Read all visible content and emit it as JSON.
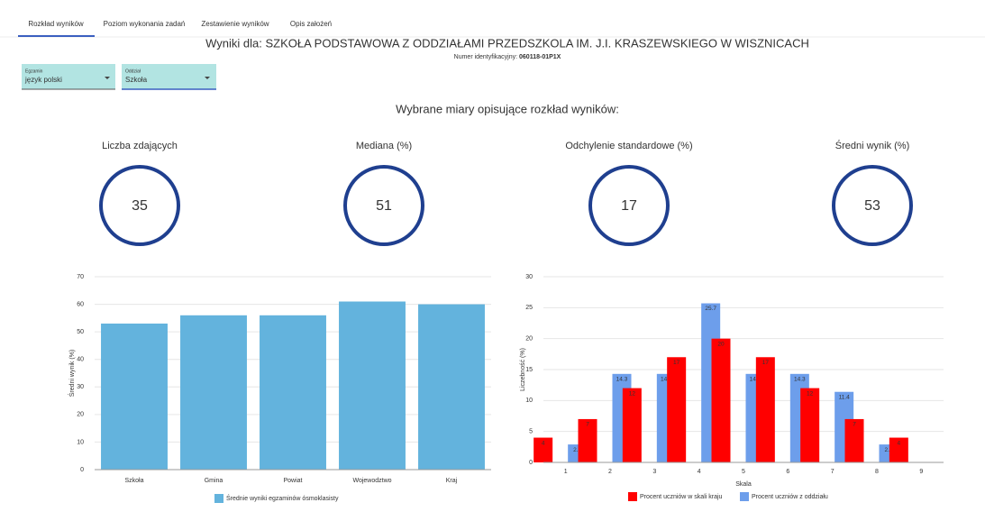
{
  "tabs": [
    "Rozkład wyników",
    "Poziom wykonania zadań",
    "Zestawienie wyników",
    "Opis założeń"
  ],
  "header": {
    "title": "Wyniki dla: SZKOŁA PODSTAWOWA Z ODDZIAŁAMI PRZEDSZKOLA IM. J.I. KRASZEWSKIEGO W WISZNICACH",
    "id_label": "Numer identyfikacyjny:",
    "id_value": "060118-01P1X"
  },
  "filters": [
    {
      "label": "Egzamin",
      "value": "język polski"
    },
    {
      "label": "Oddział",
      "value": "Szkoła"
    }
  ],
  "section_title": "Wybrane miary opisujące rozkład wyników:",
  "stats": [
    {
      "label": "Liczba zdających",
      "value": 35
    },
    {
      "label": "Mediana (%)",
      "value": 51
    },
    {
      "label": "Odchylenie standardowe (%)",
      "value": 17
    },
    {
      "label": "Średni wynik (%)",
      "value": 53
    }
  ],
  "chart_data": [
    {
      "type": "bar",
      "categories": [
        "Szkoła",
        "Gmina",
        "Powiat",
        "Wojewodztwo",
        "Kraj"
      ],
      "series": [
        {
          "name": "Średnie wyniki egzaminów ósmoklasisty",
          "color": "#63b3dd",
          "values": [
            53,
            56,
            56,
            61,
            60
          ]
        }
      ],
      "y_label": "Średni wynik (%)",
      "ylim": [
        0,
        70
      ],
      "yticks": [
        0,
        10,
        20,
        30,
        40,
        50,
        60,
        70
      ],
      "grid": true
    },
    {
      "type": "bar",
      "categories": [
        "1",
        "2",
        "3",
        "4",
        "5",
        "6",
        "7",
        "8",
        "9"
      ],
      "series": [
        {
          "name": "Procent uczniów w skali kraju",
          "color": "#ff0000",
          "values": [
            4,
            7,
            12,
            17,
            20,
            17,
            12,
            7,
            4
          ]
        },
        {
          "name": "Procent uczniów z oddziału",
          "color": "#6d9eeb",
          "values": [
            2.9,
            14.3,
            14.3,
            25.7,
            14.3,
            14.3,
            11.4,
            2.9,
            null
          ]
        }
      ],
      "x_label": "Skala",
      "y_label": "Liczebność (%)",
      "ylim": [
        0,
        30
      ],
      "yticks": [
        0,
        5,
        10,
        15,
        20,
        25,
        30
      ],
      "grid": true,
      "data_labels": true
    }
  ]
}
